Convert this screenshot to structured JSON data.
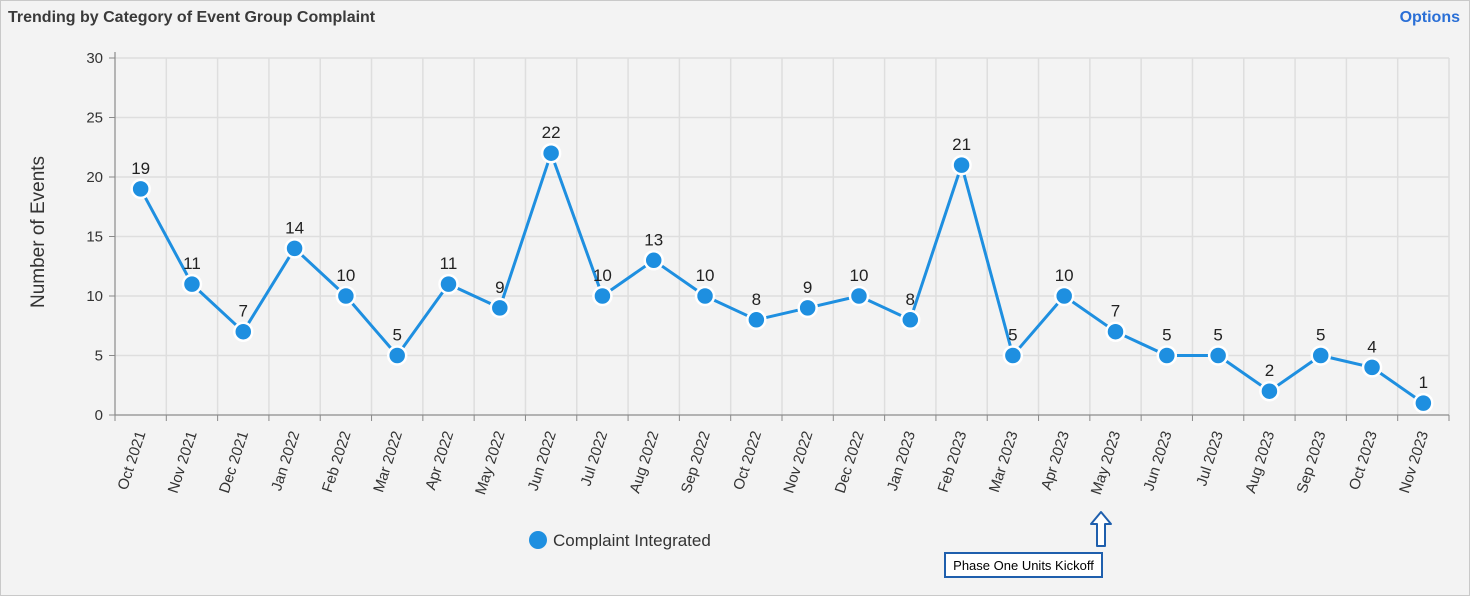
{
  "panel": {
    "title": "Trending by Category of Event Group Complaint",
    "options_label": "Options"
  },
  "annotation": {
    "text": "Phase One Units Kickoff",
    "target_category": "May 2023",
    "arrow": "up-arrow-icon",
    "border_color": "#1f5fad"
  },
  "chart_data": {
    "type": "line",
    "title": "",
    "xlabel": "",
    "ylabel": "Number of Events",
    "ylim": [
      0,
      30
    ],
    "yticks": [
      0,
      5,
      10,
      15,
      20,
      25,
      30
    ],
    "grid": true,
    "legend_position": "bottom",
    "categories": [
      "Oct 2021",
      "Nov 2021",
      "Dec 2021",
      "Jan 2022",
      "Feb 2022",
      "Mar 2022",
      "Apr 2022",
      "May 2022",
      "Jun 2022",
      "Jul 2022",
      "Aug 2022",
      "Sep 2022",
      "Oct 2022",
      "Nov 2022",
      "Dec 2022",
      "Jan 2023",
      "Feb 2023",
      "Mar 2023",
      "Apr 2023",
      "May 2023",
      "Jun 2023",
      "Jul 2023",
      "Aug 2023",
      "Sep 2023",
      "Oct 2023",
      "Nov 2023"
    ],
    "series": [
      {
        "name": "Complaint Integrated",
        "color": "#1e8fe0",
        "values": [
          19,
          11,
          7,
          14,
          10,
          5,
          11,
          9,
          22,
          10,
          13,
          10,
          8,
          9,
          10,
          8,
          21,
          5,
          10,
          7,
          5,
          5,
          2,
          5,
          4,
          1
        ]
      }
    ]
  }
}
